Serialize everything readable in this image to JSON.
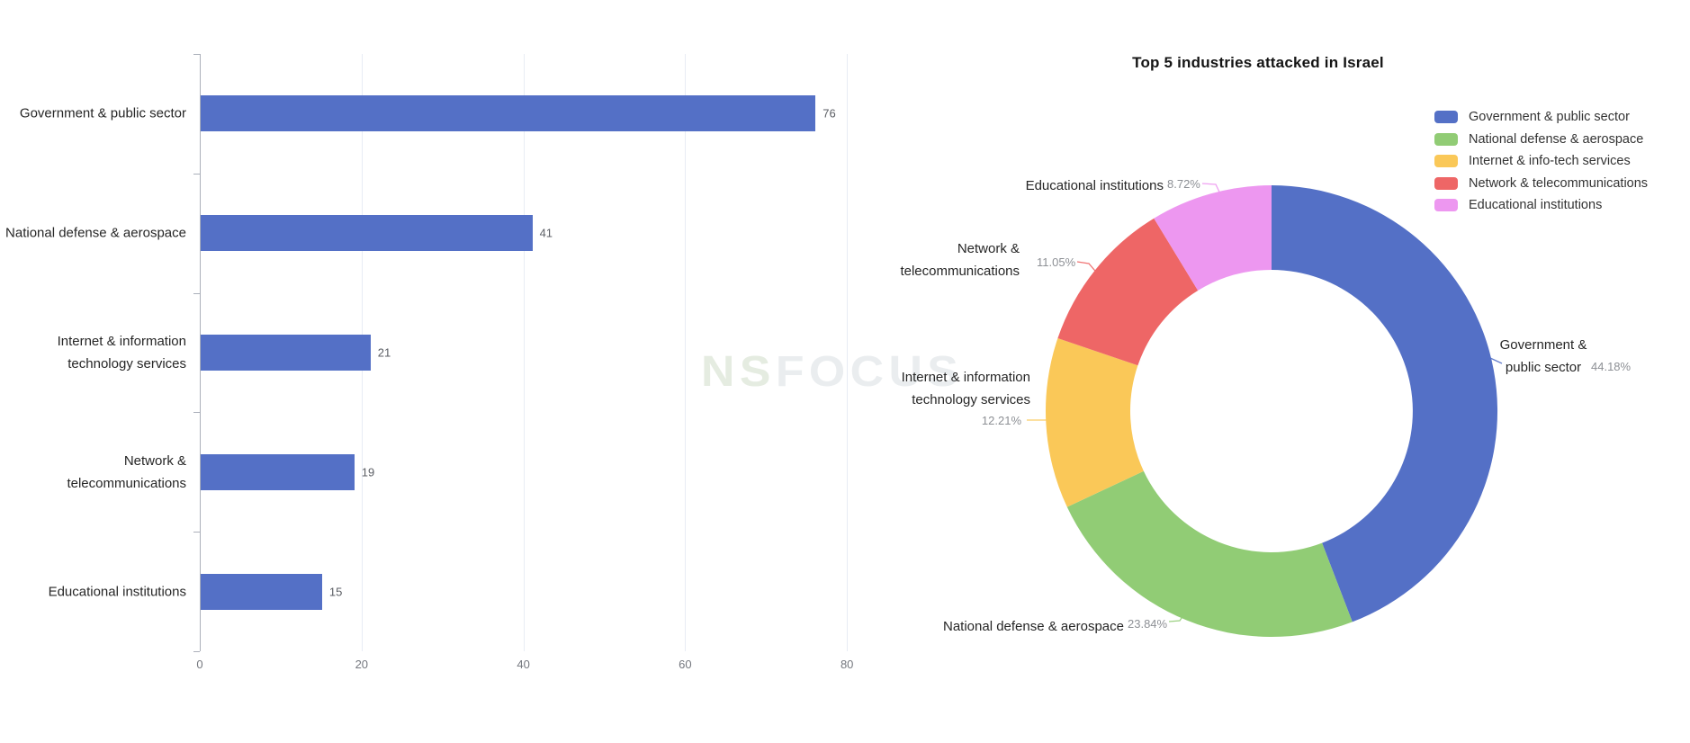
{
  "watermark": {
    "text": "NSFOCUS",
    "part1": "NS",
    "part2": "FOCUS"
  },
  "colors": {
    "bar": "#5470C6",
    "axis": "#ABB0BA",
    "grid": "#E8ECF4",
    "value_label": "#5B5E64",
    "tick_label": "#75787F",
    "category_label": "#262626",
    "pct_label": "#8D9095",
    "palette": [
      "#5470C6",
      "#91CC75",
      "#FAC858",
      "#EE6666",
      "#ED97F0"
    ]
  },
  "chart_data": [
    {
      "type": "bar",
      "orientation": "horizontal",
      "categories": [
        "Government & public sector",
        "National defense & aerospace",
        "Internet & information technology services",
        "Network & telecommunications",
        "Educational institutions"
      ],
      "category_lines": [
        [
          "Government & public sector"
        ],
        [
          "National defense & aerospace"
        ],
        [
          "Internet & information",
          "technology services"
        ],
        [
          "Network &",
          "telecommunications"
        ],
        [
          "Educational institutions"
        ]
      ],
      "values": [
        76,
        41,
        21,
        19,
        15
      ],
      "value_labels": [
        "76",
        "41",
        "21",
        "19",
        "15"
      ],
      "xlim": [
        0,
        80
      ],
      "x_ticks": [
        "0",
        "20",
        "40",
        "60",
        "80"
      ],
      "bar_color": "#5470C6",
      "grid": true,
      "legend_position": "none",
      "title": ""
    },
    {
      "type": "pie",
      "donut": true,
      "title": "Top 5 industries attacked in Israel",
      "legend_position": "top-right",
      "legend": [
        "Government & public sector",
        "National defense & aerospace",
        "Internet & info-tech services",
        "Network & telecommunications",
        "Educational institutions"
      ],
      "slices": [
        {
          "label": "Government & public sector",
          "label_lines": [
            "Government &",
            "public sector"
          ],
          "value": 44.18,
          "pct": "44.18%",
          "color": "#5470C6"
        },
        {
          "label": "National defense & aerospace",
          "label_lines": [
            "National defense & aerospace"
          ],
          "value": 23.84,
          "pct": "23.84%",
          "color": "#91CC75"
        },
        {
          "label": "Internet & information technology services",
          "label_lines": [
            "Internet & information",
            "technology services"
          ],
          "value": 12.21,
          "pct": "12.21%",
          "color": "#FAC858"
        },
        {
          "label": "Network & telecommunications",
          "label_lines": [
            "Network &",
            "telecommunications"
          ],
          "value": 11.05,
          "pct": "11.05%",
          "color": "#EE6666"
        },
        {
          "label": "Educational institutions",
          "label_lines": [
            "Educational institutions"
          ],
          "value": 8.72,
          "pct": "8.72%",
          "color": "#ED97F0"
        }
      ]
    }
  ]
}
